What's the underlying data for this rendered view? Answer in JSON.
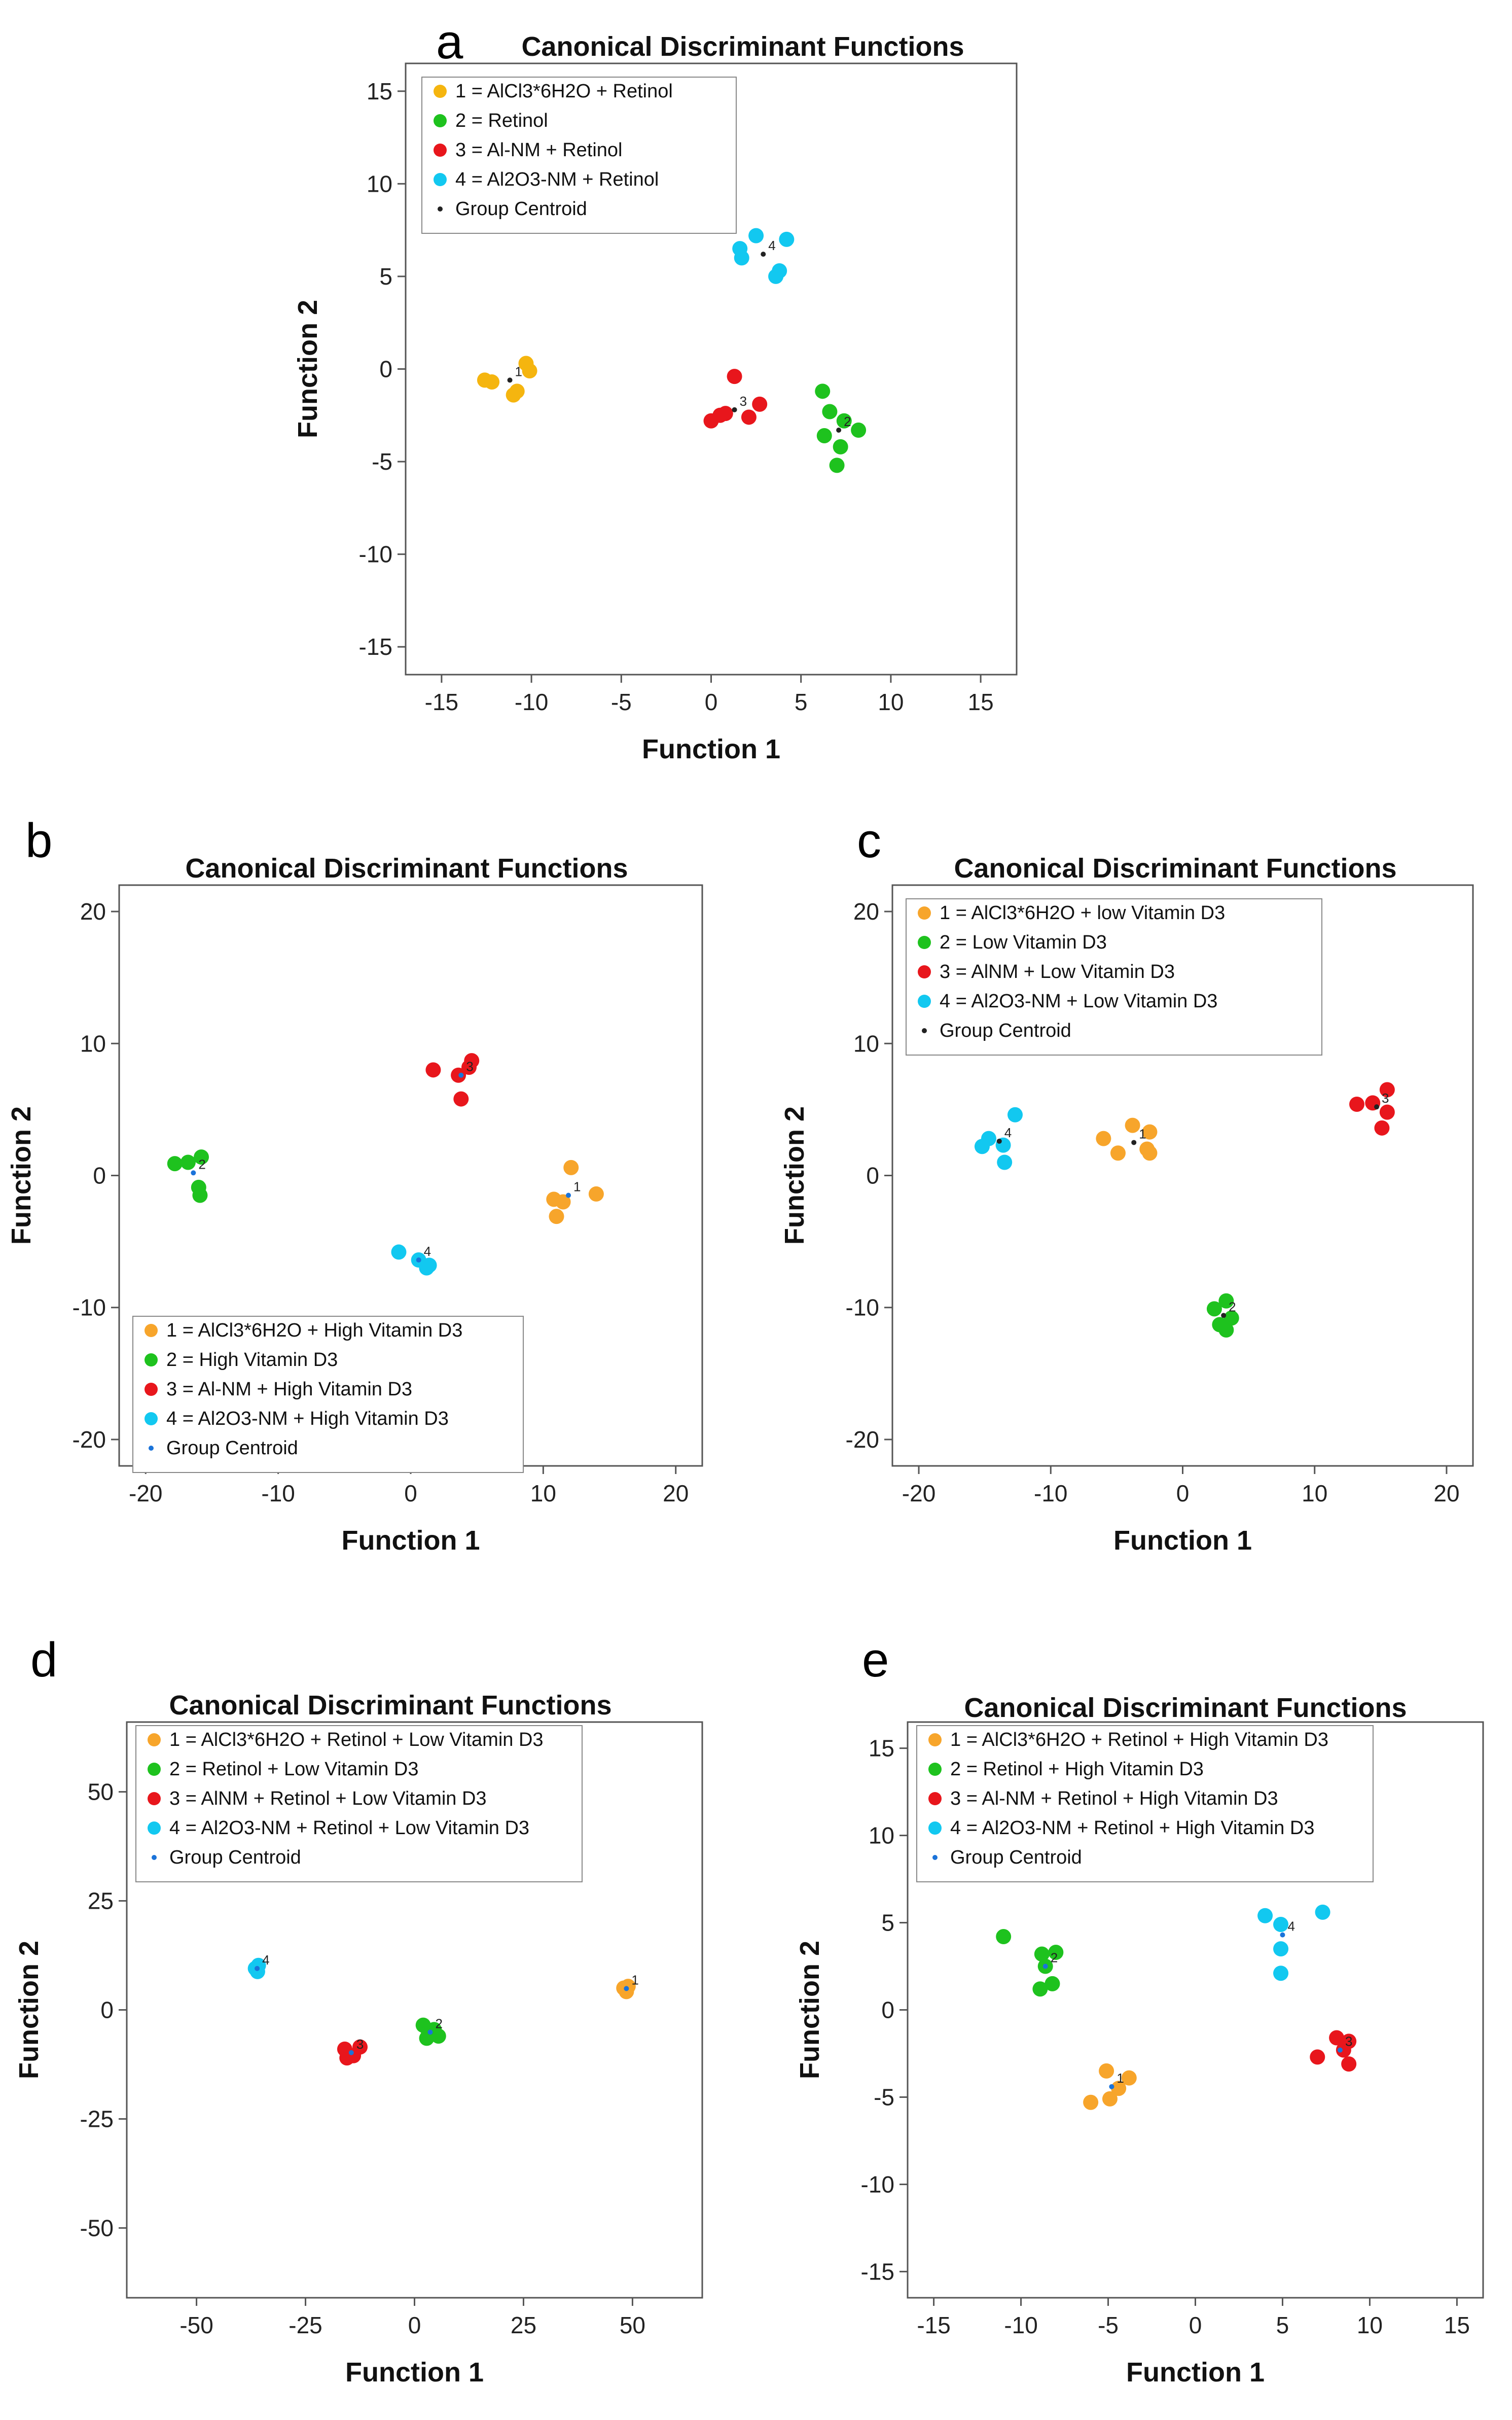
{
  "chart_data": [
    {
      "panel": "a",
      "type": "scatter",
      "title": "Canonical Discriminant Functions",
      "xlabel": "Function 1",
      "ylabel": "Function 2",
      "xlim": [
        -17,
        17
      ],
      "ylim": [
        -16.5,
        16.5
      ],
      "xticks": [
        -15,
        -10,
        -5,
        0,
        5,
        10,
        15
      ],
      "yticks": [
        -15,
        -10,
        -5,
        0,
        5,
        10,
        15
      ],
      "legend_position": "top-left",
      "centroid_marker_color": "#222222",
      "legend": [
        {
          "label": "1 = AlCl3*6H2O + Retinol",
          "color": "#f5b50f"
        },
        {
          "label": "2 = Retinol",
          "color": "#1ec21e"
        },
        {
          "label": "3 = Al-NM + Retinol",
          "color": "#e8161c"
        },
        {
          "label": "4 = Al2O3-NM + Retinol",
          "color": "#12c8f0"
        },
        {
          "label": "Group Centroid",
          "color": "#222222",
          "centroid": true
        }
      ],
      "series": [
        {
          "name": "1",
          "color": "#f5b50f",
          "points": [
            [
              -12.6,
              -0.6
            ],
            [
              -12.2,
              -0.7
            ],
            [
              -11.0,
              -1.4
            ],
            [
              -10.8,
              -1.2
            ],
            [
              -10.3,
              0.3
            ],
            [
              -10.1,
              -0.1
            ]
          ],
          "centroid": [
            -11.2,
            -0.6
          ]
        },
        {
          "name": "2",
          "color": "#1ec21e",
          "points": [
            [
              6.2,
              -1.2
            ],
            [
              6.6,
              -2.3
            ],
            [
              7.4,
              -2.8
            ],
            [
              8.2,
              -3.3
            ],
            [
              6.3,
              -3.6
            ],
            [
              7.2,
              -4.2
            ],
            [
              7.0,
              -5.2
            ]
          ],
          "centroid": [
            7.1,
            -3.3
          ]
        },
        {
          "name": "3",
          "color": "#e8161c",
          "points": [
            [
              1.3,
              -0.4
            ],
            [
              0.0,
              -2.8
            ],
            [
              0.5,
              -2.5
            ],
            [
              0.8,
              -2.4
            ],
            [
              2.1,
              -2.6
            ],
            [
              2.7,
              -1.9
            ]
          ],
          "centroid": [
            1.3,
            -2.2
          ]
        },
        {
          "name": "4",
          "color": "#12c8f0",
          "points": [
            [
              2.5,
              7.2
            ],
            [
              4.2,
              7.0
            ],
            [
              1.7,
              6.0
            ],
            [
              1.6,
              6.5
            ],
            [
              3.8,
              5.3
            ],
            [
              3.6,
              5.0
            ]
          ],
          "centroid": [
            2.9,
            6.2
          ]
        }
      ]
    },
    {
      "panel": "b",
      "type": "scatter",
      "title": "Canonical Discriminant Functions",
      "xlabel": "Function 1",
      "ylabel": "Function 2",
      "xlim": [
        -22,
        22
      ],
      "ylim": [
        -22,
        22
      ],
      "xticks": [
        -20,
        -10,
        0,
        10,
        20
      ],
      "yticks": [
        -20,
        -10,
        0,
        10,
        20
      ],
      "legend_position": "bottom-left",
      "centroid_marker_color": "#1a73d9",
      "legend": [
        {
          "label": "1 = AlCl3*6H2O + High Vitamin D3",
          "color": "#f7a52b"
        },
        {
          "label": "2 = High Vitamin D3",
          "color": "#1ec21e"
        },
        {
          "label": "3 = Al-NM + High Vitamin D3",
          "color": "#e8161c"
        },
        {
          "label": "4 = Al2O3-NM + High Vitamin D3",
          "color": "#12c8f0"
        },
        {
          "label": "Group Centroid",
          "color": "#1a73d9",
          "centroid": true
        }
      ],
      "series": [
        {
          "name": "1",
          "color": "#f7a52b",
          "points": [
            [
              12.1,
              0.6
            ],
            [
              10.8,
              -1.8
            ],
            [
              11.5,
              -2.0
            ],
            [
              11.0,
              -3.1
            ],
            [
              14.0,
              -1.4
            ]
          ],
          "centroid": [
            11.9,
            -1.5
          ]
        },
        {
          "name": "2",
          "color": "#1ec21e",
          "points": [
            [
              -17.8,
              0.9
            ],
            [
              -16.8,
              1.0
            ],
            [
              -15.8,
              1.4
            ],
            [
              -16.0,
              -0.9
            ],
            [
              -15.9,
              -1.5
            ]
          ],
          "centroid": [
            -16.4,
            0.2
          ]
        },
        {
          "name": "3",
          "color": "#e8161c",
          "points": [
            [
              1.7,
              8.0
            ],
            [
              3.6,
              7.6
            ],
            [
              4.4,
              8.2
            ],
            [
              4.6,
              8.7
            ],
            [
              3.8,
              5.8
            ]
          ],
          "centroid": [
            3.8,
            7.6
          ]
        },
        {
          "name": "4",
          "color": "#12c8f0",
          "points": [
            [
              -0.9,
              -5.8
            ],
            [
              0.6,
              -6.4
            ],
            [
              1.4,
              -6.8
            ],
            [
              1.2,
              -7.0
            ]
          ],
          "centroid": [
            0.6,
            -6.4
          ]
        }
      ]
    },
    {
      "panel": "c",
      "type": "scatter",
      "title": "Canonical Discriminant Functions",
      "xlabel": "Function 1",
      "ylabel": "Function 2",
      "xlim": [
        -22,
        22
      ],
      "ylim": [
        -22,
        22
      ],
      "xticks": [
        -20,
        -10,
        0,
        10,
        20
      ],
      "yticks": [
        -20,
        -10,
        0,
        10,
        20
      ],
      "legend_position": "top-left",
      "centroid_marker_color": "#222222",
      "legend": [
        {
          "label": "1 = AlCl3*6H2O + low Vitamin D3",
          "color": "#f7a52b"
        },
        {
          "label": "2 = Low Vitamin D3",
          "color": "#1ec21e"
        },
        {
          "label": "3 = AlNM + Low Vitamin D3",
          "color": "#e8161c"
        },
        {
          "label": "4 = Al2O3-NM + Low Vitamin D3",
          "color": "#12c8f0"
        },
        {
          "label": "Group Centroid",
          "color": "#222222",
          "centroid": true
        }
      ],
      "series": [
        {
          "name": "1",
          "color": "#f7a52b",
          "points": [
            [
              -6.0,
              2.8
            ],
            [
              -4.9,
              1.7
            ],
            [
              -3.8,
              3.8
            ],
            [
              -2.5,
              3.3
            ],
            [
              -2.7,
              2.0
            ],
            [
              -2.5,
              1.7
            ]
          ],
          "centroid": [
            -3.7,
            2.5
          ]
        },
        {
          "name": "2",
          "color": "#1ec21e",
          "points": [
            [
              3.3,
              -9.5
            ],
            [
              2.4,
              -10.1
            ],
            [
              3.7,
              -10.8
            ],
            [
              2.8,
              -11.3
            ],
            [
              3.3,
              -11.7
            ]
          ],
          "centroid": [
            3.1,
            -10.6
          ]
        },
        {
          "name": "3",
          "color": "#e8161c",
          "points": [
            [
              13.2,
              5.4
            ],
            [
              14.4,
              5.5
            ],
            [
              15.5,
              6.5
            ],
            [
              15.5,
              4.8
            ],
            [
              15.1,
              3.6
            ]
          ],
          "centroid": [
            14.7,
            5.2
          ]
        },
        {
          "name": "4",
          "color": "#12c8f0",
          "points": [
            [
              -15.2,
              2.2
            ],
            [
              -14.7,
              2.8
            ],
            [
              -13.6,
              2.3
            ],
            [
              -12.7,
              4.6
            ],
            [
              -13.5,
              1.0
            ]
          ],
          "centroid": [
            -13.9,
            2.6
          ]
        }
      ]
    },
    {
      "panel": "d",
      "type": "scatter",
      "title": "Canonical Discriminant Functions",
      "xlabel": "Function 1",
      "ylabel": "Function 2",
      "xlim": [
        -66,
        66
      ],
      "ylim": [
        -66,
        66
      ],
      "xticks": [
        -50,
        -25,
        0,
        25,
        50
      ],
      "yticks": [
        -50,
        -25,
        0,
        25,
        50
      ],
      "legend_position": "top-left",
      "centroid_marker_color": "#1a73d9",
      "legend": [
        {
          "label": "1 = AlCl3*6H2O + Retinol + Low Vitamin D3",
          "color": "#f7a52b"
        },
        {
          "label": "2 = Retinol + Low Vitamin D3",
          "color": "#1ec21e"
        },
        {
          "label": "3 = AlNM + Retinol + Low Vitamin D3",
          "color": "#e8161c"
        },
        {
          "label": "4 = Al2O3-NM + Retinol + Low Vitamin D3",
          "color": "#12c8f0"
        },
        {
          "label": "Group Centroid",
          "color": "#1a73d9",
          "centroid": true
        }
      ],
      "series": [
        {
          "name": "1",
          "color": "#f7a52b",
          "points": [
            [
              48.0,
              5.0
            ],
            [
              48.6,
              4.2
            ],
            [
              49.0,
              5.4
            ]
          ],
          "centroid": [
            48.6,
            4.9
          ]
        },
        {
          "name": "2",
          "color": "#1ec21e",
          "points": [
            [
              2.0,
              -3.5
            ],
            [
              4.5,
              -4.5
            ],
            [
              2.8,
              -6.5
            ],
            [
              5.5,
              -6.0
            ],
            [
              3.2,
              -5.0
            ]
          ],
          "centroid": [
            3.6,
            -5.1
          ]
        },
        {
          "name": "3",
          "color": "#e8161c",
          "points": [
            [
              -16.0,
              -9.0
            ],
            [
              -14.0,
              -10.5
            ],
            [
              -12.5,
              -8.5
            ],
            [
              -15.5,
              -11.0
            ]
          ],
          "centroid": [
            -14.5,
            -9.8
          ]
        },
        {
          "name": "4",
          "color": "#12c8f0",
          "points": [
            [
              -36.5,
              9.5
            ],
            [
              -36.0,
              8.8
            ],
            [
              -35.8,
              10.2
            ]
          ],
          "centroid": [
            -36.1,
            9.5
          ]
        }
      ]
    },
    {
      "panel": "e",
      "type": "scatter",
      "title": "Canonical Discriminant Functions",
      "xlabel": "Function 1",
      "ylabel": "Function 2",
      "xlim": [
        -16.5,
        16.5
      ],
      "ylim": [
        -16.5,
        16.5
      ],
      "xticks": [
        -15,
        -10,
        -5,
        0,
        5,
        10,
        15
      ],
      "yticks": [
        -15,
        -10,
        -5,
        0,
        5,
        10,
        15
      ],
      "legend_position": "top-left",
      "centroid_marker_color": "#1a73d9",
      "legend": [
        {
          "label": "1 = AlCl3*6H2O + Retinol + High Vitamin D3",
          "color": "#f7a52b"
        },
        {
          "label": "2 = Retinol + High Vitamin D3",
          "color": "#1ec21e"
        },
        {
          "label": "3 = Al-NM + Retinol + High Vitamin D3",
          "color": "#e8161c"
        },
        {
          "label": "4 = Al2O3-NM + Retinol + High Vitamin D3",
          "color": "#12c8f0"
        },
        {
          "label": "Group Centroid",
          "color": "#1a73d9",
          "centroid": true
        }
      ],
      "series": [
        {
          "name": "1",
          "color": "#f7a52b",
          "points": [
            [
              -5.1,
              -3.5
            ],
            [
              -3.8,
              -3.9
            ],
            [
              -6.0,
              -5.3
            ],
            [
              -4.9,
              -5.1
            ],
            [
              -4.4,
              -4.5
            ]
          ],
          "centroid": [
            -4.8,
            -4.4
          ]
        },
        {
          "name": "2",
          "color": "#1ec21e",
          "points": [
            [
              -11.0,
              4.2
            ],
            [
              -8.8,
              3.2
            ],
            [
              -8.0,
              3.3
            ],
            [
              -8.6,
              2.5
            ],
            [
              -8.2,
              1.5
            ],
            [
              -8.9,
              1.2
            ]
          ],
          "centroid": [
            -8.6,
            2.5
          ]
        },
        {
          "name": "3",
          "color": "#e8161c",
          "points": [
            [
              7.0,
              -2.7
            ],
            [
              8.1,
              -1.6
            ],
            [
              8.8,
              -1.8
            ],
            [
              8.5,
              -2.3
            ],
            [
              8.8,
              -3.1
            ]
          ],
          "centroid": [
            8.3,
            -2.3
          ]
        },
        {
          "name": "4",
          "color": "#12c8f0",
          "points": [
            [
              4.0,
              5.4
            ],
            [
              7.3,
              5.6
            ],
            [
              4.9,
              4.9
            ],
            [
              4.9,
              3.5
            ],
            [
              4.9,
              2.1
            ]
          ],
          "centroid": [
            5.0,
            4.3
          ]
        }
      ]
    }
  ]
}
